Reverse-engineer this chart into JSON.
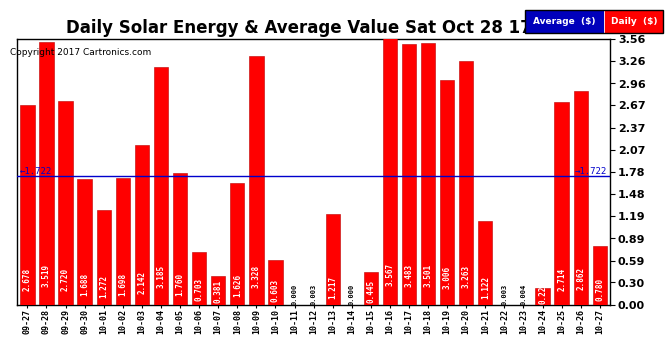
{
  "title": "Daily Solar Energy & Average Value Sat Oct 28 17:42",
  "copyright": "Copyright 2017 Cartronics.com",
  "average_line": 1.722,
  "average_label": "1.722",
  "categories": [
    "09-27",
    "09-28",
    "09-29",
    "09-30",
    "10-01",
    "10-02",
    "10-03",
    "10-04",
    "10-05",
    "10-06",
    "10-07",
    "10-08",
    "10-09",
    "10-10",
    "10-11",
    "10-12",
    "10-13",
    "10-14",
    "10-15",
    "10-16",
    "10-17",
    "10-18",
    "10-19",
    "10-20",
    "10-21",
    "10-22",
    "10-23",
    "10-24",
    "10-25",
    "10-26",
    "10-27"
  ],
  "values": [
    2.678,
    3.519,
    2.72,
    1.688,
    1.272,
    1.698,
    2.142,
    3.185,
    1.76,
    0.703,
    0.381,
    1.626,
    3.328,
    0.603,
    0.0,
    0.003,
    1.217,
    0.0,
    0.445,
    3.567,
    3.483,
    3.501,
    3.006,
    3.263,
    1.122,
    0.003,
    0.004,
    0.224,
    2.714,
    2.862,
    0.78
  ],
  "bar_color": "#FF0000",
  "bar_edge_color": "#BB0000",
  "ylim": [
    0.0,
    3.56
  ],
  "yticks": [
    0.0,
    0.3,
    0.59,
    0.89,
    1.19,
    1.48,
    1.78,
    2.07,
    2.37,
    2.67,
    2.96,
    3.26,
    3.56
  ],
  "average_line_color": "#0000CC",
  "background_color": "#FFFFFF",
  "grid_color": "#BBBBBB",
  "title_fontsize": 12,
  "label_fontsize": 6,
  "value_fontsize": 5.5,
  "ytick_fontsize": 8,
  "legend_avg_color": "#0000BB",
  "legend_daily_color": "#FF0000"
}
